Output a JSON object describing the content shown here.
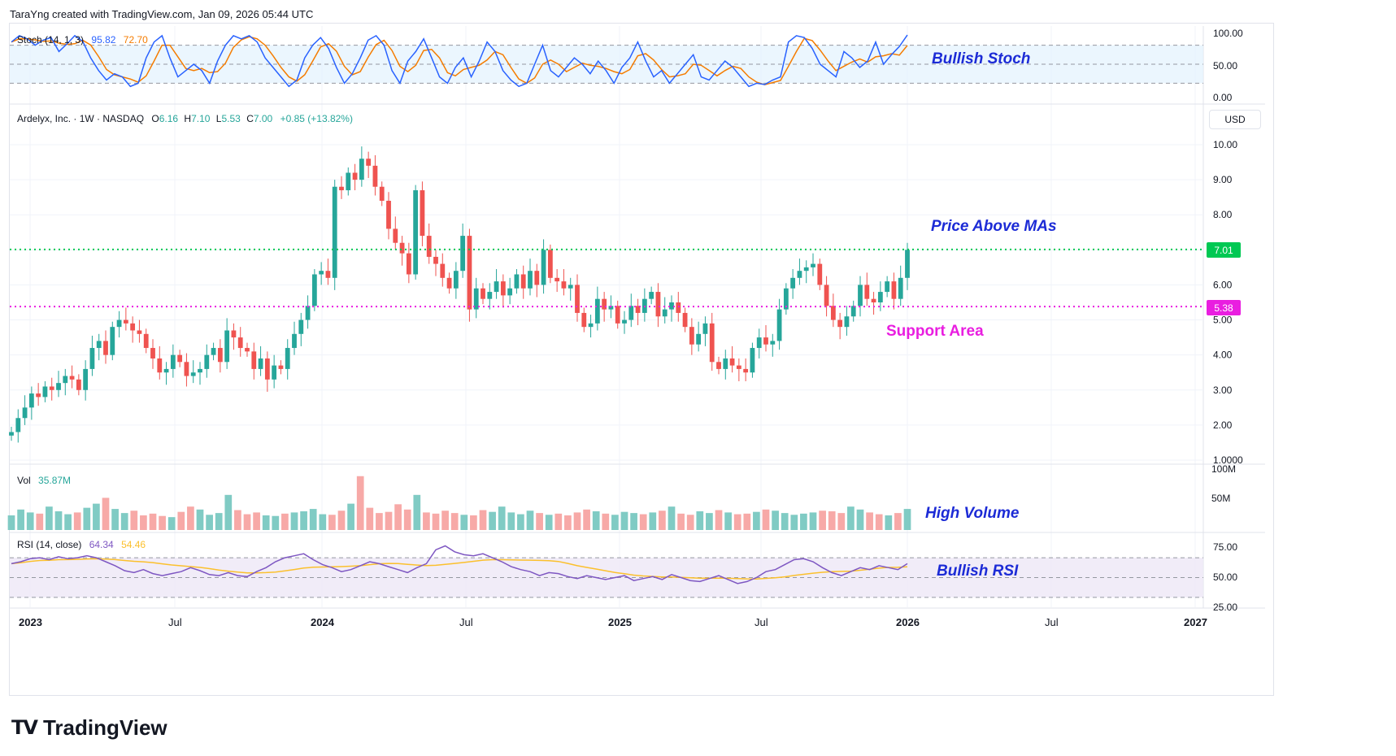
{
  "header": {
    "credit": "TaraYng created with TradingView.com, Jan 09, 2026 05:44 UTC"
  },
  "stoch": {
    "label": "Stoch (14, 1, 3)",
    "k_value": "95.82",
    "d_value": "72.70",
    "k_color": "#2962ff",
    "d_color": "#f57c00",
    "axis": [
      "100.00",
      "50.00",
      "0.00"
    ],
    "annotation": "Bullish Stoch"
  },
  "price": {
    "legend": {
      "name": "Ardelyx, Inc. · 1W · NASDAQ",
      "open_l": "O",
      "open": "6.16",
      "high_l": "H",
      "high": "7.10",
      "low_l": "L",
      "low": "5.53",
      "close_l": "C",
      "close": "7.00",
      "change": "+0.85 (+13.82%)"
    },
    "currency": "USD",
    "axis": [
      "10.00",
      "9.00",
      "8.00",
      "7.00",
      "6.00",
      "5.00",
      "4.00",
      "3.00",
      "2.00",
      "1.0000"
    ],
    "last_price_tag": "7.01",
    "support_tag": "5.38",
    "annotations": {
      "above_mas": "Price Above MAs",
      "support": "Support Area"
    },
    "colors": {
      "up": "#26a69a",
      "down": "#ef5350",
      "last_line": "#00c853",
      "support_line": "#e91ee0"
    }
  },
  "volume": {
    "label": "Vol",
    "value": "35.87M",
    "axis": [
      "100M",
      "50M"
    ],
    "annotation": "High Volume"
  },
  "rsi": {
    "label": "RSI (14, close)",
    "value": "64.34",
    "ma_value": "54.46",
    "rsi_color": "#7e57c2",
    "ma_color": "#fbc02d",
    "axis": [
      "75.00",
      "50.00",
      "25.00"
    ],
    "annotation": "Bullish RSI"
  },
  "time_axis": [
    "2023",
    "Jul",
    "2024",
    "Jul",
    "2025",
    "Jul",
    "2026",
    "Jul",
    "2027"
  ],
  "footer": {
    "brand": "TradingView"
  },
  "chart_data": {
    "type": "candlestick",
    "timeframe": "1W",
    "symbol": "Ardelyx, Inc. (NASDAQ)",
    "x_range": [
      "2023-01",
      "2027-01"
    ],
    "price_range": [
      1,
      10.5
    ],
    "levels": {
      "last_price": 7.01,
      "support": 5.38
    },
    "close_series": [
      1.8,
      2.2,
      2.5,
      2.9,
      2.8,
      3.1,
      3.0,
      3.2,
      3.4,
      3.3,
      3.0,
      3.6,
      4.2,
      4.4,
      4.0,
      4.8,
      5.0,
      4.9,
      4.7,
      4.6,
      4.2,
      3.9,
      3.5,
      3.6,
      4.0,
      3.8,
      3.4,
      3.5,
      3.6,
      4.0,
      4.2,
      3.8,
      4.7,
      4.5,
      4.2,
      4.1,
      3.6,
      3.9,
      3.3,
      3.7,
      3.6,
      4.2,
      4.6,
      5.0,
      5.4,
      6.3,
      6.4,
      6.2,
      8.8,
      8.7,
      9.2,
      9.0,
      9.6,
      9.4,
      8.8,
      8.4,
      7.6,
      7.2,
      6.9,
      6.3,
      8.7,
      7.4,
      6.8,
      6.6,
      6.2,
      5.9,
      6.4,
      7.4,
      5.3,
      5.9,
      5.6,
      5.8,
      6.1,
      5.7,
      5.9,
      6.3,
      5.9,
      6.4,
      6.0,
      7.0,
      6.2,
      6.1,
      5.9,
      6.0,
      5.2,
      4.8,
      4.9,
      5.6,
      5.3,
      5.4,
      4.9,
      5.0,
      5.4,
      5.2,
      5.6,
      5.8,
      5.1,
      5.3,
      5.5,
      5.2,
      4.8,
      4.3,
      4.6,
      4.9,
      3.8,
      3.6,
      3.9,
      3.7,
      3.6,
      3.5,
      4.2,
      4.5,
      4.3,
      4.4,
      5.3,
      5.9,
      6.2,
      6.4,
      6.5,
      6.6,
      6.0,
      5.4,
      5.0,
      4.8,
      5.1,
      5.4,
      6.0,
      5.6,
      5.5,
      5.8,
      6.1,
      5.6,
      6.2,
      7.0
    ],
    "stoch_k": [
      85,
      95,
      90,
      80,
      88,
      92,
      70,
      82,
      95,
      86,
      60,
      40,
      25,
      35,
      30,
      15,
      20,
      60,
      85,
      95,
      60,
      30,
      40,
      50,
      40,
      20,
      55,
      80,
      95,
      90,
      95,
      85,
      60,
      45,
      30,
      15,
      25,
      60,
      80,
      92,
      75,
      45,
      20,
      35,
      60,
      88,
      95,
      80,
      40,
      20,
      55,
      70,
      90,
      60,
      30,
      20,
      45,
      60,
      30,
      55,
      85,
      70,
      40,
      25,
      15,
      20,
      50,
      80,
      40,
      30,
      45,
      60,
      50,
      35,
      55,
      40,
      20,
      45,
      60,
      85,
      55,
      30,
      40,
      20,
      35,
      50,
      65,
      30,
      25,
      40,
      55,
      45,
      30,
      15,
      20,
      18,
      25,
      30,
      85,
      95,
      92,
      75,
      50,
      40,
      30,
      70,
      60,
      45,
      55,
      85,
      50,
      65,
      78,
      96
    ],
    "rsi_series": [
      64,
      66,
      69,
      70,
      68,
      71,
      69,
      70,
      72,
      70,
      66,
      62,
      57,
      55,
      58,
      54,
      52,
      54,
      56,
      60,
      57,
      53,
      52,
      55,
      52,
      51,
      56,
      60,
      66,
      70,
      72,
      74,
      68,
      63,
      60,
      56,
      58,
      62,
      66,
      64,
      61,
      58,
      55,
      60,
      64,
      78,
      82,
      76,
      73,
      72,
      74,
      70,
      66,
      61,
      58,
      56,
      52,
      55,
      54,
      51,
      49,
      52,
      50,
      48,
      50,
      52,
      47,
      49,
      51,
      48,
      53,
      50,
      47,
      46,
      49,
      52,
      48,
      44,
      46,
      50,
      56,
      58,
      63,
      68,
      69,
      66,
      60,
      55,
      52,
      56,
      60,
      58,
      62,
      60,
      58,
      64
    ],
    "volume_series_millions": [
      25,
      35,
      30,
      28,
      40,
      32,
      27,
      30,
      38,
      45,
      55,
      36,
      29,
      33,
      25,
      28,
      24,
      22,
      31,
      40,
      35,
      26,
      29,
      60,
      34,
      27,
      30,
      25,
      24,
      28,
      30,
      32,
      36,
      27,
      26,
      33,
      45,
      92,
      38,
      29,
      31,
      44,
      35,
      60,
      30,
      28,
      33,
      29,
      26,
      25,
      34,
      31,
      40,
      30,
      27,
      33,
      29,
      26,
      28,
      25,
      30,
      35,
      32,
      28,
      26,
      31,
      29,
      27,
      30,
      33,
      40,
      28,
      26,
      32,
      29,
      34,
      30,
      27,
      28,
      31,
      35,
      33,
      29,
      26,
      28,
      30,
      33,
      32,
      29,
      40,
      35,
      30,
      27,
      25,
      29,
      36
    ]
  }
}
